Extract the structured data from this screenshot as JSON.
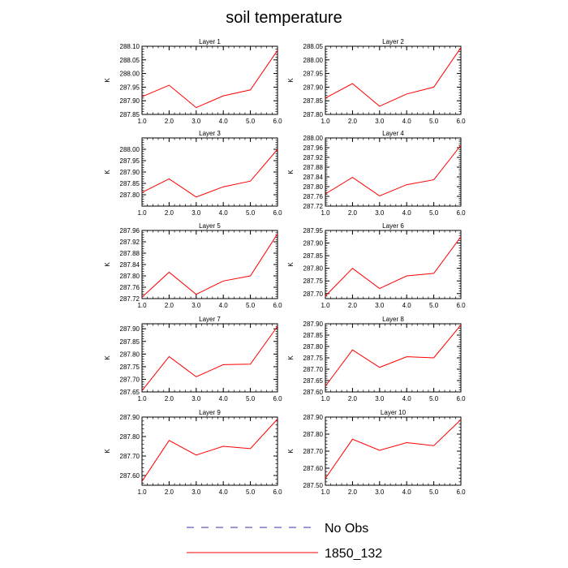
{
  "figure_title": "soil temperature",
  "colors": {
    "series": "#ff0000",
    "obs": "#3333aa",
    "axis": "#000000"
  },
  "legend": {
    "items": [
      {
        "label": "No Obs",
        "style": "dashed",
        "color": "#3333aa"
      },
      {
        "label": "1850_132",
        "style": "solid",
        "color": "#ff0000"
      }
    ]
  },
  "chart_data": [
    {
      "type": "line",
      "title": "Layer 1",
      "xlabel": "",
      "ylabel": "K",
      "x": [
        1.0,
        2.0,
        3.0,
        4.0,
        5.0,
        6.0
      ],
      "x_ticks": [
        "1.0",
        "2.0",
        "3.0",
        "4.0",
        "5.0",
        "6.0"
      ],
      "xlim": [
        1.0,
        6.0
      ],
      "ylim": [
        287.85,
        288.1
      ],
      "y_ticks": [
        "287.85",
        "287.90",
        "287.95",
        "288.00",
        "288.05",
        "288.10"
      ],
      "series": [
        {
          "name": "1850_132",
          "values": [
            287.915,
            287.957,
            287.875,
            287.918,
            287.94,
            288.085
          ]
        }
      ]
    },
    {
      "type": "line",
      "title": "Layer 2",
      "xlabel": "",
      "ylabel": "K",
      "x": [
        1.0,
        2.0,
        3.0,
        4.0,
        5.0,
        6.0
      ],
      "x_ticks": [
        "1.0",
        "2.0",
        "3.0",
        "4.0",
        "5.0",
        "6.0"
      ],
      "xlim": [
        1.0,
        6.0
      ],
      "ylim": [
        287.8,
        288.05
      ],
      "y_ticks": [
        "287.80",
        "287.85",
        "287.90",
        "287.95",
        "288.00",
        "288.05"
      ],
      "series": [
        {
          "name": "1850_132",
          "values": [
            287.86,
            287.913,
            287.83,
            287.875,
            287.9,
            288.045
          ]
        }
      ]
    },
    {
      "type": "line",
      "title": "Layer 3",
      "xlabel": "",
      "ylabel": "K",
      "x": [
        1.0,
        2.0,
        3.0,
        4.0,
        5.0,
        6.0
      ],
      "x_ticks": [
        "1.0",
        "2.0",
        "3.0",
        "4.0",
        "5.0",
        "6.0"
      ],
      "xlim": [
        1.0,
        6.0
      ],
      "ylim": [
        287.75,
        288.05
      ],
      "y_ticks": [
        "287.80",
        "287.85",
        "287.90",
        "287.95",
        "288.00"
      ],
      "series": [
        {
          "name": "1850_132",
          "values": [
            287.81,
            287.87,
            287.79,
            287.835,
            287.86,
            288.0
          ]
        }
      ]
    },
    {
      "type": "line",
      "title": "Layer 4",
      "xlabel": "",
      "ylabel": "K",
      "x": [
        1.0,
        2.0,
        3.0,
        4.0,
        5.0,
        6.0
      ],
      "x_ticks": [
        "1.0",
        "2.0",
        "3.0",
        "4.0",
        "5.0",
        "6.0"
      ],
      "xlim": [
        1.0,
        6.0
      ],
      "ylim": [
        287.72,
        288.0
      ],
      "y_ticks": [
        "287.72",
        "287.76",
        "287.80",
        "287.84",
        "287.88",
        "287.92",
        "287.96",
        "288.00"
      ],
      "series": [
        {
          "name": "1850_132",
          "values": [
            287.77,
            287.838,
            287.762,
            287.808,
            287.828,
            287.97
          ]
        }
      ]
    },
    {
      "type": "line",
      "title": "Layer 5",
      "xlabel": "",
      "ylabel": "K",
      "x": [
        1.0,
        2.0,
        3.0,
        4.0,
        5.0,
        6.0
      ],
      "x_ticks": [
        "1.0",
        "2.0",
        "3.0",
        "4.0",
        "5.0",
        "6.0"
      ],
      "xlim": [
        1.0,
        6.0
      ],
      "ylim": [
        287.72,
        287.96
      ],
      "y_ticks": [
        "287.72",
        "287.76",
        "287.80",
        "287.84",
        "287.88",
        "287.92",
        "287.96"
      ],
      "series": [
        {
          "name": "1850_132",
          "values": [
            287.725,
            287.813,
            287.735,
            287.782,
            287.8,
            287.948
          ]
        }
      ]
    },
    {
      "type": "line",
      "title": "Layer 6",
      "xlabel": "",
      "ylabel": "K",
      "x": [
        1.0,
        2.0,
        3.0,
        4.0,
        5.0,
        6.0
      ],
      "x_ticks": [
        "1.0",
        "2.0",
        "3.0",
        "4.0",
        "5.0",
        "6.0"
      ],
      "xlim": [
        1.0,
        6.0
      ],
      "ylim": [
        287.68,
        287.95
      ],
      "y_ticks": [
        "287.70",
        "287.75",
        "287.80",
        "287.85",
        "287.90",
        "287.95"
      ],
      "series": [
        {
          "name": "1850_132",
          "values": [
            287.69,
            287.8,
            287.72,
            287.77,
            287.78,
            287.925
          ]
        }
      ]
    },
    {
      "type": "line",
      "title": "Layer 7",
      "xlabel": "",
      "ylabel": "K",
      "x": [
        1.0,
        2.0,
        3.0,
        4.0,
        5.0,
        6.0
      ],
      "x_ticks": [
        "1.0",
        "2.0",
        "3.0",
        "4.0",
        "5.0",
        "6.0"
      ],
      "xlim": [
        1.0,
        6.0
      ],
      "ylim": [
        287.65,
        287.92
      ],
      "y_ticks": [
        "287.65",
        "287.70",
        "287.75",
        "287.80",
        "287.85",
        "287.90"
      ],
      "series": [
        {
          "name": "1850_132",
          "values": [
            287.655,
            287.79,
            287.71,
            287.758,
            287.76,
            287.91
          ]
        }
      ]
    },
    {
      "type": "line",
      "title": "Layer 8",
      "xlabel": "",
      "ylabel": "K",
      "x": [
        1.0,
        2.0,
        3.0,
        4.0,
        5.0,
        6.0
      ],
      "x_ticks": [
        "1.0",
        "2.0",
        "3.0",
        "4.0",
        "5.0",
        "6.0"
      ],
      "xlim": [
        1.0,
        6.0
      ],
      "ylim": [
        287.6,
        287.9
      ],
      "y_ticks": [
        "287.60",
        "287.65",
        "287.70",
        "287.75",
        "287.80",
        "287.85",
        "287.90"
      ],
      "series": [
        {
          "name": "1850_132",
          "values": [
            287.625,
            287.785,
            287.708,
            287.755,
            287.75,
            287.895
          ]
        }
      ]
    },
    {
      "type": "line",
      "title": "Layer 9",
      "xlabel": "",
      "ylabel": "K",
      "x": [
        1.0,
        2.0,
        3.0,
        4.0,
        5.0,
        6.0
      ],
      "x_ticks": [
        "1.0",
        "2.0",
        "3.0",
        "4.0",
        "5.0",
        "6.0"
      ],
      "xlim": [
        1.0,
        6.0
      ],
      "ylim": [
        287.55,
        287.9
      ],
      "y_ticks": [
        "287.60",
        "287.70",
        "287.80",
        "287.90"
      ],
      "series": [
        {
          "name": "1850_132",
          "values": [
            287.57,
            287.78,
            287.705,
            287.75,
            287.738,
            287.89
          ]
        }
      ]
    },
    {
      "type": "line",
      "title": "Layer 10",
      "xlabel": "",
      "ylabel": "K",
      "x": [
        1.0,
        2.0,
        3.0,
        4.0,
        5.0,
        6.0
      ],
      "x_ticks": [
        "1.0",
        "2.0",
        "3.0",
        "4.0",
        "5.0",
        "6.0"
      ],
      "xlim": [
        1.0,
        6.0
      ],
      "ylim": [
        287.5,
        287.9
      ],
      "y_ticks": [
        "287.50",
        "287.60",
        "287.70",
        "287.80",
        "287.90"
      ],
      "series": [
        {
          "name": "1850_132",
          "values": [
            287.54,
            287.77,
            287.705,
            287.75,
            287.732,
            287.885
          ]
        }
      ]
    }
  ]
}
